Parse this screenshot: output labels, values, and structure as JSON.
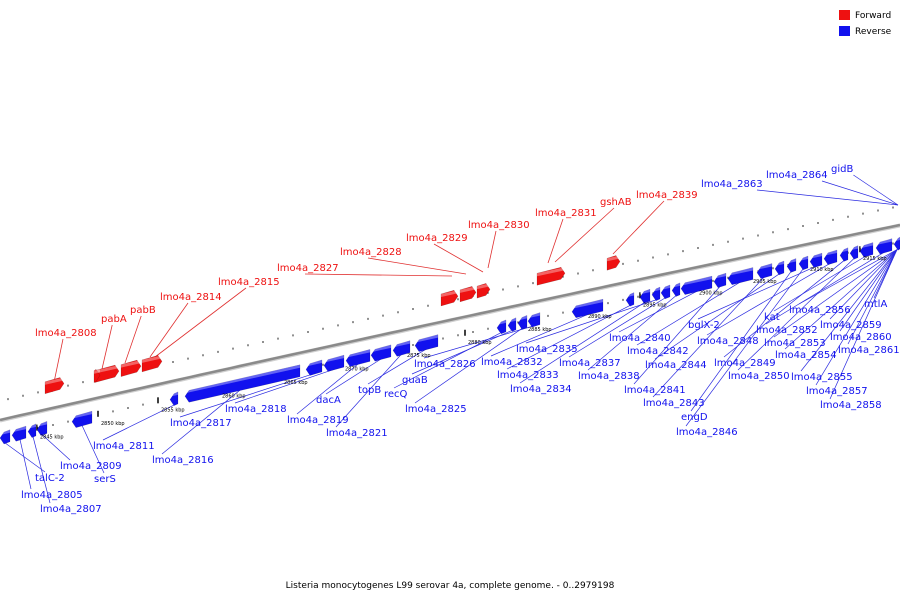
{
  "colors": {
    "forward": "#ee1111",
    "reverse": "#1111ee",
    "backbone": "#8a8a8a",
    "leader": "#e03030",
    "leader_rev": "#2a2ae0"
  },
  "legend": [
    {
      "label": "Forward",
      "color": "#ee1111"
    },
    {
      "label": "Reverse",
      "color": "#1111ee"
    }
  ],
  "caption": "Listeria monocytogenes L99 serovar 4a, complete genome. - 0..2979198",
  "kbp_ticks": [
    "2845 kbp",
    "2850 kbp",
    "2855 kbp",
    "2860 kbp",
    "2865 kbp",
    "2870 kbp",
    "2875 kbp",
    "2880 kbp",
    "2885 kbp",
    "2890 kbp",
    "2895 kbp",
    "2900 kbp",
    "2905 kbp",
    "2910 kbp",
    "2915 kbp"
  ],
  "forward_genes": [
    "lmo4a_2808",
    "pabA",
    "pabB",
    "lmo4a_2814",
    "lmo4a_2815",
    "lmo4a_2827",
    "lmo4a_2828",
    "lmo4a_2829",
    "lmo4a_2830",
    "lmo4a_2831",
    "gshAB",
    "lmo4a_2839"
  ],
  "reverse_genes": [
    "talC-2",
    "lmo4a_2805",
    "lmo4a_2807",
    "lmo4a_2809",
    "serS",
    "lmo4a_2811",
    "lmo4a_2816",
    "lmo4a_2817",
    "lmo4a_2818",
    "lmo4a_2819",
    "dacA",
    "lmo4a_2821",
    "topB",
    "recQ",
    "guaB",
    "lmo4a_2825",
    "lmo4a_2826",
    "lmo4a_2832",
    "lmo4a_2833",
    "lmo4a_2834",
    "lmo4a_2835",
    "lmo4a_2837",
    "lmo4a_2838",
    "lmo4a_2840",
    "lmo4a_2841",
    "lmo4a_2842",
    "lmo4a_2843",
    "lmo4a_2844",
    "engD",
    "lmo4a_2846",
    "bglX-2",
    "lmo4a_2848",
    "lmo4a_2849",
    "lmo4a_2850",
    "kat",
    "lmo4a_2852",
    "lmo4a_2853",
    "lmo4a_2854",
    "lmo4a_2855",
    "lmo4a_2856",
    "lmo4a_2857",
    "lmo4a_2858",
    "lmo4a_2859",
    "lmo4a_2860",
    "lmo4a_2861",
    "mtlA",
    "lmo4a_2863",
    "lmo4a_2864",
    "gidB"
  ]
}
